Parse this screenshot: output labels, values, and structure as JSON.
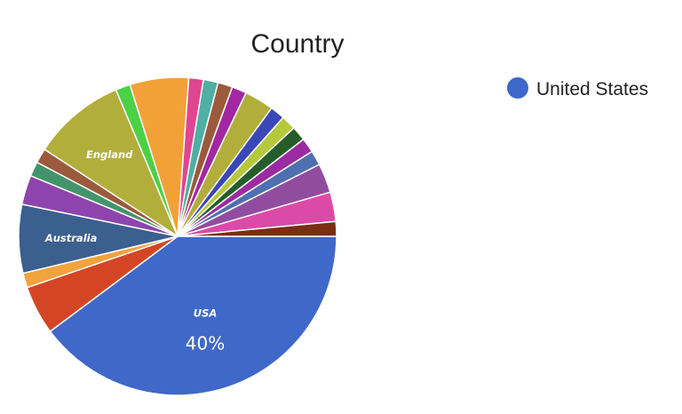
{
  "chart_data": {
    "type": "pie",
    "title": "Country",
    "start_angle_deg": 90,
    "direction": "clockwise",
    "slices": [
      {
        "label": "USA",
        "value": 40,
        "color": "#3f68c8",
        "show_label": true,
        "pct_text": "40%"
      },
      {
        "label": "",
        "value": 5.0,
        "color": "#d44526",
        "show_label": false
      },
      {
        "label": "",
        "value": 1.5,
        "color": "#f1a33c",
        "show_label": false
      },
      {
        "label": "Australia",
        "value": 7.0,
        "color": "#3b5f8f",
        "show_label": true
      },
      {
        "label": "",
        "value": 3.0,
        "color": "#8e44ad",
        "show_label": false
      },
      {
        "label": "",
        "value": 1.5,
        "color": "#43946c",
        "show_label": false
      },
      {
        "label": "",
        "value": 1.5,
        "color": "#9b5a3c",
        "show_label": false
      },
      {
        "label": "England",
        "value": 9.5,
        "color": "#b1ae3b",
        "show_label": true
      },
      {
        "label": "",
        "value": 1.5,
        "color": "#4cd046",
        "show_label": false
      },
      {
        "label": "",
        "value": 6.0,
        "color": "#f2a138",
        "show_label": false
      },
      {
        "label": "",
        "value": 1.5,
        "color": "#e0468f",
        "show_label": false
      },
      {
        "label": "",
        "value": 1.5,
        "color": "#4fafa3",
        "show_label": false
      },
      {
        "label": "",
        "value": 1.5,
        "color": "#9b5a3c",
        "show_label": false
      },
      {
        "label": "",
        "value": 1.5,
        "color": "#a327a0",
        "show_label": false
      },
      {
        "label": "",
        "value": 3.0,
        "color": "#b1ae3b",
        "show_label": false
      },
      {
        "label": "",
        "value": 1.5,
        "color": "#3a47b8",
        "show_label": false
      },
      {
        "label": "",
        "value": 1.5,
        "color": "#b6c83b",
        "show_label": false
      },
      {
        "label": "",
        "value": 1.5,
        "color": "#245d2a",
        "show_label": false
      },
      {
        "label": "",
        "value": 1.5,
        "color": "#9c2aa0",
        "show_label": false
      },
      {
        "label": "",
        "value": 1.5,
        "color": "#4e6fb0",
        "show_label": false
      },
      {
        "label": "",
        "value": 3.0,
        "color": "#904da0",
        "show_label": false
      },
      {
        "label": "",
        "value": 3.0,
        "color": "#dc4aa7",
        "show_label": false
      },
      {
        "label": "",
        "value": 1.5,
        "color": "#7a2e14",
        "show_label": false
      }
    ],
    "legend": {
      "position": "top-right",
      "entries": [
        {
          "label": "United States",
          "color": "#3f68c8"
        }
      ]
    }
  }
}
